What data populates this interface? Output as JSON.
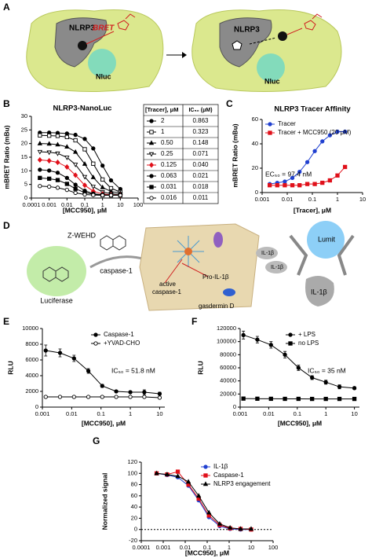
{
  "panel_a": {
    "label": "A",
    "left": {
      "nlrp3": "NLRP3",
      "bret": "BRET",
      "nluc": "Nluc"
    },
    "right": {
      "nlrp3": "NLRP3",
      "nluc": "Nluc"
    }
  },
  "panel_d": {
    "label": "D",
    "z_wehd": "Z-WEHD",
    "caspase": "caspase-1",
    "luciferase": "Luciferase",
    "active_caspase": [
      "active",
      "caspase-1"
    ],
    "pro_il": "Pro-IL-1β",
    "gasdermin": "gasdermin D",
    "il_released": [
      "IL-1β",
      "IL-1β"
    ],
    "lumit": "Lumit",
    "il_bound": "IL-1β"
  },
  "chart_data": [
    {
      "type": "line",
      "label": "B",
      "title": "NLRP3-NanoLuc",
      "x_label": "[MCC950], μM",
      "y_label": "mBRET Ratio (mBu)",
      "xlog": true,
      "xlim": [
        0.0001,
        100
      ],
      "xticks": [
        0.0001,
        0.001,
        0.01,
        0.1,
        1,
        10,
        100
      ],
      "ylim": [
        0,
        30
      ],
      "yticks": [
        0,
        5,
        10,
        15,
        20,
        25,
        30
      ],
      "x": [
        0.0003,
        0.001,
        0.003,
        0.01,
        0.03,
        0.1,
        0.3,
        1,
        3,
        10
      ],
      "table": {
        "header": [
          "[Tracer], μM",
          "IC₅₀ (μM)"
        ],
        "ic50": [
          "0.863",
          "0.323",
          "0.148",
          "0.071",
          "0.040",
          "0.021",
          "0.018",
          "0.011"
        ]
      },
      "series": [
        {
          "name": "2",
          "color": "#000000",
          "marker": "circle",
          "filled": true,
          "values": [
            24,
            24,
            23.9,
            23.7,
            23.2,
            21.7,
            18.2,
            11.9,
            6.5,
            3.3
          ]
        },
        {
          "name": "1",
          "color": "#000000",
          "marker": "square",
          "filled": false,
          "values": [
            23,
            22.9,
            22.8,
            22.4,
            21.2,
            17.9,
            12.6,
            6.8,
            3.6,
            2.2
          ]
        },
        {
          "name": "0.50",
          "color": "#000000",
          "marker": "triangle",
          "filled": true,
          "values": [
            20,
            19.9,
            19.6,
            18.8,
            16.9,
            12.5,
            7.6,
            3.9,
            2.4,
            1.8
          ]
        },
        {
          "name": "0.25",
          "color": "#000000",
          "marker": "triangle-down",
          "filled": false,
          "values": [
            17,
            16.8,
            16.4,
            14.9,
            12.3,
            7.8,
            4.2,
            2.2,
            1.6,
            1.3
          ]
        },
        {
          "name": "0.125",
          "color": "#e0101a",
          "marker": "diamond",
          "filled": true,
          "values": [
            14,
            13.7,
            13.1,
            11.4,
            8.4,
            4.7,
            2.5,
            1.5,
            1.2,
            1.0
          ]
        },
        {
          "name": "0.063",
          "color": "#000000",
          "marker": "circle",
          "filled": true,
          "values": [
            10.4,
            10.1,
            9.3,
            7.4,
            4.9,
            2.7,
            1.6,
            1.2,
            1.1,
            1.0
          ]
        },
        {
          "name": "0.031",
          "color": "#000000",
          "marker": "square",
          "filled": true,
          "values": [
            7.4,
            7.1,
            6.6,
            5.2,
            3.4,
            2.0,
            1.4,
            1.1,
            1.0,
            1.0
          ]
        },
        {
          "name": "0.016",
          "color": "#000000",
          "marker": "circle",
          "filled": false,
          "values": [
            4.4,
            4.2,
            3.8,
            3.0,
            1.9,
            1.3,
            1.1,
            1.0,
            1.0,
            1.0
          ]
        }
      ]
    },
    {
      "type": "line",
      "label": "C",
      "title": "NLRP3 Tracer Affinity",
      "x_label": "[Tracer], μM",
      "y_label": "mBRET Ratio (mBu)",
      "xlog": true,
      "xlim": [
        0.001,
        10
      ],
      "xticks": [
        0.001,
        0.01,
        0.1,
        1,
        10
      ],
      "ylim": [
        0,
        60
      ],
      "yticks": [
        0,
        20,
        40,
        60
      ],
      "x": [
        0.002,
        0.004,
        0.008,
        0.016,
        0.031,
        0.063,
        0.125,
        0.25,
        0.5,
        1,
        2
      ],
      "annotation": "EC₅₀ = 97.4 nM",
      "series": [
        {
          "name": "Tracer",
          "color": "#2040d0",
          "marker": "circle",
          "filled": true,
          "values": [
            7,
            8,
            9,
            12,
            17,
            25,
            34,
            42,
            47,
            50,
            50
          ]
        },
        {
          "name": "Tracer + MCC950 (20 μM)",
          "color": "#e0101a",
          "marker": "square",
          "filled": true,
          "values": [
            6,
            6,
            6,
            6,
            6,
            7,
            7,
            8,
            10,
            14,
            21
          ]
        }
      ]
    },
    {
      "type": "line",
      "label": "E",
      "x_label": "[MCC950], μM",
      "y_label": "RLU",
      "xlog": true,
      "xlim": [
        0.001,
        15
      ],
      "xticks": [
        0.001,
        0.01,
        0.1,
        1,
        10
      ],
      "ylim": [
        0,
        10000
      ],
      "yticks": [
        0,
        2000,
        4000,
        6000,
        8000,
        10000
      ],
      "x": [
        0.0013,
        0.004,
        0.012,
        0.037,
        0.11,
        0.33,
        1,
        3,
        10
      ],
      "annotation": "IC₅₀ = 51.8 nM",
      "series": [
        {
          "name": "Caspase-1",
          "color": "#000000",
          "marker": "circle",
          "filled": true,
          "values": [
            7200,
            6900,
            6200,
            4600,
            2700,
            2000,
            1900,
            1900,
            1700
          ],
          "errors": [
            700,
            500,
            400,
            300,
            200,
            150,
            150,
            300,
            200
          ]
        },
        {
          "name": "+YVAD-CHO",
          "color": "#000000",
          "marker": "circle",
          "filled": false,
          "values": [
            1300,
            1300,
            1300,
            1300,
            1300,
            1300,
            1300,
            1300,
            1200
          ]
        }
      ]
    },
    {
      "type": "line",
      "label": "F",
      "x_label": "[MCC950], μM",
      "y_label": "RLU",
      "xlog": true,
      "xlim": [
        0.001,
        15
      ],
      "xticks": [
        0.001,
        0.01,
        0.1,
        1,
        10
      ],
      "ylim": [
        0,
        120000
      ],
      "yticks": [
        0,
        20000,
        40000,
        60000,
        80000,
        100000,
        120000
      ],
      "x": [
        0.0013,
        0.004,
        0.012,
        0.037,
        0.11,
        0.33,
        1,
        3,
        10
      ],
      "annotation": "IC₅₀ = 35 nM",
      "series": [
        {
          "name": "+ LPS",
          "color": "#000000",
          "marker": "circle",
          "filled": true,
          "values": [
            110000,
            103000,
            95000,
            80000,
            60000,
            45000,
            38000,
            31000,
            29000
          ],
          "errors": [
            6000,
            5000,
            5000,
            5000,
            4000,
            3000,
            3000,
            3000,
            2000
          ]
        },
        {
          "name": "no LPS",
          "color": "#000000",
          "marker": "square",
          "filled": true,
          "values": [
            13000,
            12800,
            12700,
            12600,
            12600,
            12500,
            12500,
            12500,
            12500
          ]
        }
      ]
    },
    {
      "type": "line",
      "label": "G",
      "x_label": "[MCC950], μM",
      "y_label": "Normalized signal",
      "xlog": true,
      "xlim": [
        0.0001,
        100
      ],
      "xticks": [
        0.0001,
        0.001,
        0.01,
        0.1,
        1,
        10,
        100
      ],
      "ylim": [
        -20,
        120
      ],
      "yticks": [
        -20,
        0,
        20,
        40,
        60,
        80,
        100,
        120
      ],
      "x": [
        0.0005,
        0.0015,
        0.0046,
        0.014,
        0.041,
        0.12,
        0.37,
        1.1,
        3.3,
        10
      ],
      "series": [
        {
          "name": "IL-1β",
          "color": "#2040d0",
          "marker": "circle",
          "filled": true,
          "values": [
            100,
            97,
            93,
            78,
            52,
            22,
            6,
            1,
            0,
            0
          ]
        },
        {
          "name": "Caspase-1",
          "color": "#e0101a",
          "marker": "square",
          "filled": true,
          "values": [
            100,
            98,
            103,
            80,
            55,
            25,
            8,
            2,
            1,
            0
          ]
        },
        {
          "name": "NLRP3 engagement",
          "color": "#000000",
          "marker": "triangle",
          "filled": true,
          "values": [
            100,
            98,
            95,
            85,
            60,
            30,
            10,
            3,
            1,
            1
          ]
        }
      ]
    }
  ]
}
